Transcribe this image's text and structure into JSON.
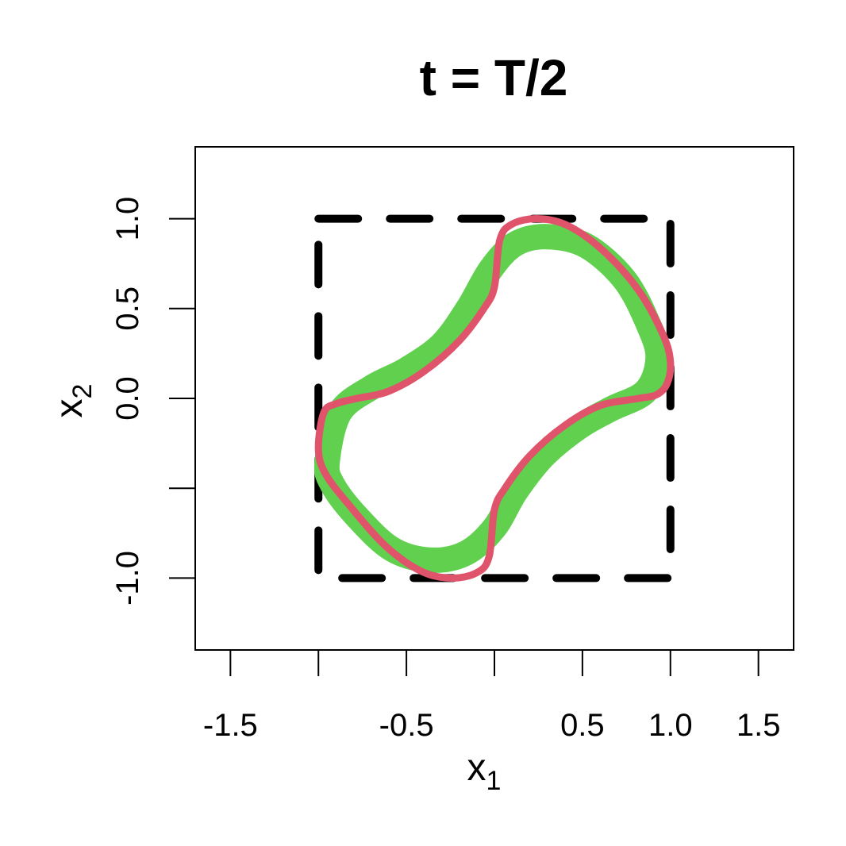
{
  "chart_data": {
    "type": "line",
    "title": "t = T/2",
    "xlabel": {
      "base": "x",
      "sub": "1"
    },
    "ylabel": {
      "base": "x",
      "sub": "2"
    },
    "xlim": [
      -1.7,
      1.7
    ],
    "ylim": [
      -1.4,
      1.4
    ],
    "x_ticks": [
      -1.5,
      -1.0,
      -0.5,
      0.0,
      0.5,
      1.0,
      1.5
    ],
    "x_tick_labels": [
      "-1.5",
      "",
      "-0.5",
      "",
      "0.5",
      "1.0",
      "1.5"
    ],
    "y_ticks": [
      -1.0,
      -0.5,
      0.0,
      0.5,
      1.0
    ],
    "y_tick_labels": [
      "-1.0",
      "",
      "0.0",
      "0.5",
      "1.0"
    ],
    "grid": false,
    "box": {
      "corners": [
        [
          -1,
          -1
        ],
        [
          1,
          1
        ]
      ],
      "style": "dashed",
      "color": "#000000"
    },
    "series": [
      {
        "role": "sampled-contours",
        "color": "#61D04F",
        "points": [
          [
            -0.95,
            -0.35
          ],
          [
            -0.88,
            -0.08
          ],
          [
            -0.7,
            0.06
          ],
          [
            -0.5,
            0.16
          ],
          [
            -0.3,
            0.3
          ],
          [
            -0.15,
            0.5
          ],
          [
            -0.02,
            0.72
          ],
          [
            0.12,
            0.86
          ],
          [
            0.3,
            0.9
          ],
          [
            0.52,
            0.85
          ],
          [
            0.74,
            0.66
          ],
          [
            0.88,
            0.4
          ],
          [
            0.93,
            0.22
          ],
          [
            0.86,
            0.04
          ],
          [
            0.66,
            -0.06
          ],
          [
            0.48,
            -0.16
          ],
          [
            0.28,
            -0.32
          ],
          [
            0.12,
            -0.52
          ],
          [
            0.0,
            -0.72
          ],
          [
            -0.16,
            -0.86
          ],
          [
            -0.36,
            -0.9
          ],
          [
            -0.58,
            -0.84
          ],
          [
            -0.78,
            -0.66
          ],
          [
            -0.92,
            -0.48
          ]
        ]
      },
      {
        "role": "reference-contour",
        "color": "#DF536B",
        "points": [
          [
            -1.0,
            -0.28
          ],
          [
            -0.97,
            -0.08
          ],
          [
            -0.9,
            -0.03
          ],
          [
            -0.78,
            0.0
          ],
          [
            -0.6,
            0.04
          ],
          [
            -0.4,
            0.15
          ],
          [
            -0.2,
            0.32
          ],
          [
            -0.06,
            0.5
          ],
          [
            0.0,
            0.62
          ],
          [
            0.03,
            0.88
          ],
          [
            0.1,
            0.97
          ],
          [
            0.25,
            1.0
          ],
          [
            0.42,
            0.96
          ],
          [
            0.62,
            0.82
          ],
          [
            0.82,
            0.6
          ],
          [
            0.96,
            0.35
          ],
          [
            1.0,
            0.2
          ],
          [
            0.98,
            0.08
          ],
          [
            0.92,
            0.02
          ],
          [
            0.82,
            0.0
          ],
          [
            0.6,
            -0.04
          ],
          [
            0.4,
            -0.15
          ],
          [
            0.2,
            -0.32
          ],
          [
            0.06,
            -0.5
          ],
          [
            0.0,
            -0.62
          ],
          [
            -0.03,
            -0.88
          ],
          [
            -0.1,
            -0.97
          ],
          [
            -0.25,
            -1.0
          ],
          [
            -0.42,
            -0.96
          ],
          [
            -0.62,
            -0.82
          ],
          [
            -0.82,
            -0.6
          ],
          [
            -0.96,
            -0.42
          ]
        ]
      }
    ]
  }
}
